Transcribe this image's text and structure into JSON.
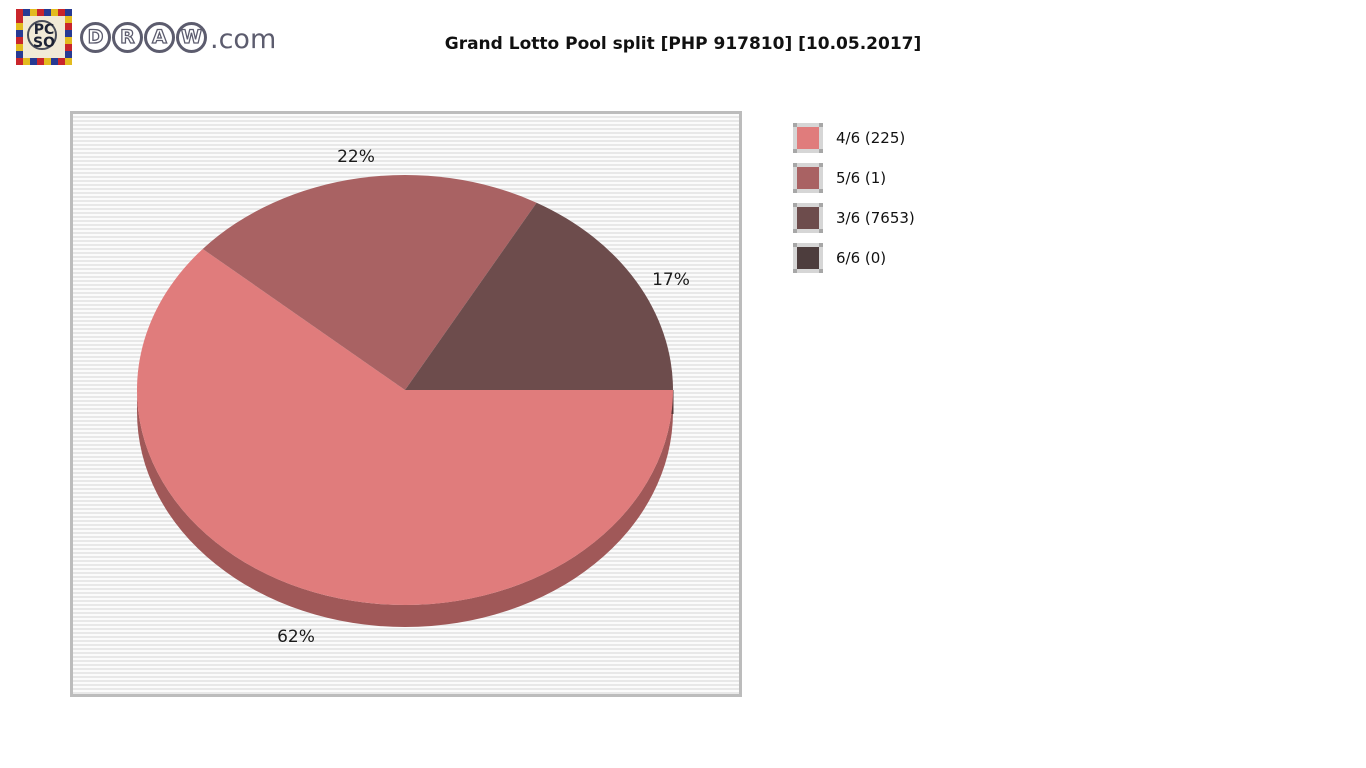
{
  "header": {
    "title": "Grand Lotto Pool split [PHP 917810] [10.05.2017]",
    "logo": {
      "stamp_lines": [
        "PC",
        "SO"
      ],
      "site_name_letters": [
        "D",
        "R",
        "A",
        "W"
      ],
      "site_suffix": ".com",
      "stamp_border_colors": [
        "#c9252b",
        "#273a93",
        "#e3bb1f"
      ]
    }
  },
  "chart_data": {
    "type": "pie",
    "style": "3d",
    "title": "Grand Lotto Pool split [PHP 917810] [10.05.2017]",
    "legend_position": "right",
    "slices": [
      {
        "category": "4/6",
        "count": 225,
        "percent": 62,
        "percent_label": "62%",
        "legend_label": "4/6 (225)",
        "color": "#e07c7c"
      },
      {
        "category": "5/6",
        "count": 1,
        "percent": 22,
        "percent_label": "22%",
        "legend_label": "5/6 (1)",
        "color": "#a96263"
      },
      {
        "category": "3/6",
        "count": 7653,
        "percent": 17,
        "percent_label": "17%",
        "legend_label": "3/6 (7653)",
        "color": "#6d4c4c"
      },
      {
        "category": "6/6",
        "count": 0,
        "percent": 0,
        "percent_label": "",
        "legend_label": "6/6 (0)",
        "color": "#4d3d3d"
      }
    ],
    "depth_color": "#a05858",
    "edge_color": "#553737",
    "label_color": "#1b1b1b"
  }
}
